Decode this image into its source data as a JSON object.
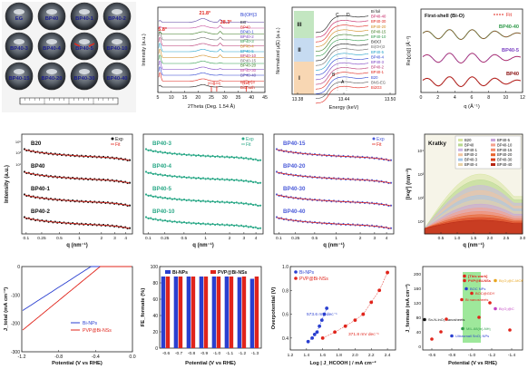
{
  "colors": {
    "red": "#e0241b",
    "blue": "#2a3fd0",
    "green": "#2f9a4a",
    "teal": "#23a98e",
    "purple": "#7a3fc2",
    "black": "#111111",
    "tealDots": "#2aa887",
    "purpleDots": "#4a5ad9",
    "darkred": "#7a1010"
  },
  "dish_panel": {
    "cells": [
      {
        "label": "EG",
        "red": false
      },
      {
        "label": "BP40",
        "red": false
      },
      {
        "label": "BP40-1",
        "red": false
      },
      {
        "label": "BP40-2",
        "red": false
      },
      {
        "label": "BP40-3",
        "red": false
      },
      {
        "label": "BP40-4",
        "red": false
      },
      {
        "label": "BP40-5",
        "red": true
      },
      {
        "label": "BP40-10",
        "red": false
      },
      {
        "label": "BP40-15",
        "red": false
      },
      {
        "label": "BP40-20",
        "red": false
      },
      {
        "label": "BP40-30",
        "red": false
      },
      {
        "label": "BP40-40",
        "red": false
      }
    ]
  },
  "chart_data": [
    {
      "id": "xrd",
      "type": "line",
      "xlabel": "2Theta (Deg. 1.54 Å)",
      "ylabel": "Intensity (a.u.)",
      "xlim": [
        5,
        45
      ],
      "xticks": [
        5,
        10,
        15,
        20,
        25,
        30,
        35,
        40,
        45
      ],
      "peak_labels": [
        "5.8°",
        "21.8°",
        "28.3°"
      ],
      "legend": [
        "EG",
        "BP40",
        "BP40-1",
        "BP40-2",
        "BP40-3",
        "BP40-4",
        "BP40-5",
        "BP40-10",
        "BP40-15",
        "BP40-20",
        "BP40-30",
        "BP40-40"
      ],
      "annotations": [
        "Bi(OH)3",
        "Bi(OH)3",
        "Bismuth",
        "[012]",
        "[104]",
        "[110]"
      ],
      "series_colors": [
        "#111111",
        "#e0241b",
        "#2a3fd0",
        "#7a3fc2",
        "#2f9a4a",
        "#d08a1e",
        "#23a0c8",
        "#b7306e",
        "#6a6a6a",
        "#3a7a20",
        "#c74a9a",
        "#5a3fa0"
      ]
    },
    {
      "id": "xanes",
      "type": "line",
      "xlabel": "Energy (keV)",
      "ylabel": "Normalized μ(E) (a.u.)",
      "xlim": [
        13.38,
        13.5
      ],
      "xticks": [
        "13.38",
        "13.44",
        "13.50"
      ],
      "region_labels": [
        "I",
        "II",
        "III"
      ],
      "peak_labels": [
        "C",
        "D",
        "B",
        "A"
      ],
      "legend": [
        "Bi foil",
        "BP40-40",
        "BP40-30",
        "BP40-20",
        "BP40-15",
        "BP40-10",
        "BiOCl",
        "Bi(OH)3",
        "BP40-5",
        "BP40-4",
        "BP40-3",
        "BP40-2",
        "BP40-1",
        "B20",
        "BNS-EG",
        "Bi2O3"
      ]
    },
    {
      "id": "exafs",
      "type": "line",
      "title": "First-shell (Bi-O)",
      "xlabel": "q (Å⁻¹)",
      "ylabel": "Re[χ(q)] (Å⁻²)",
      "xlim": [
        0,
        12
      ],
      "xticks": [
        0,
        2,
        4,
        6,
        8,
        10,
        12
      ],
      "legend": [
        "Fit"
      ],
      "series": [
        {
          "name": "BP40-40",
          "color": "#2f9a4a"
        },
        {
          "name": "BP40-5",
          "color": "#7a3fc2"
        },
        {
          "name": "BP40",
          "color": "#8a1010"
        }
      ]
    },
    {
      "id": "saxs1",
      "type": "line",
      "xlabel": "q (nm⁻¹)",
      "ylabel": "Intensity (a.u.)",
      "xticks": [
        "0.1",
        "0.25",
        "0.5",
        "1",
        "2",
        "3",
        "4"
      ],
      "yticks": [
        "10⁵",
        "10³",
        "10¹"
      ],
      "legend": [
        "Exp",
        "Fit"
      ],
      "series": [
        {
          "name": "B20"
        },
        {
          "name": "BP40"
        },
        {
          "name": "BP40-1"
        },
        {
          "name": "BP40-2"
        }
      ]
    },
    {
      "id": "saxs2",
      "type": "line",
      "xlabel": "q (nm⁻¹)",
      "xticks": [
        "0.1",
        "0.25",
        "0.5",
        "1",
        "2",
        "3",
        "4"
      ],
      "legend": [
        "Exp",
        "Fit"
      ],
      "series": [
        {
          "name": "BP40-3"
        },
        {
          "name": "BP40-4"
        },
        {
          "name": "BP40-5"
        },
        {
          "name": "BP40-10"
        }
      ]
    },
    {
      "id": "saxs3",
      "type": "line",
      "xlabel": "q (nm⁻¹)",
      "xticks": [
        "0.1",
        "0.25",
        "0.5",
        "1",
        "2",
        "3",
        "4"
      ],
      "legend": [
        "Exp",
        "Fit"
      ],
      "series": [
        {
          "name": "BP40-15"
        },
        {
          "name": "BP40-20"
        },
        {
          "name": "BP40-30"
        },
        {
          "name": "BP40-40"
        }
      ]
    },
    {
      "id": "kratky",
      "type": "area",
      "title": "Kratky",
      "xlabel": "q (nm⁻¹)",
      "ylabel": "[I×q²] (nm⁻²)",
      "xlim": [
        0,
        3
      ],
      "xticks": [
        "0.5",
        "1.0",
        "1.5",
        "2.0",
        "2.5",
        "3.0"
      ],
      "yticks": [
        "10⁴",
        "10³",
        "10²",
        "10¹"
      ],
      "legend": [
        "B20",
        "BP40",
        "BP40-1",
        "BP40-2",
        "BP40-3",
        "BP40-4",
        "BP40-5",
        "BP40-10",
        "BP40-15",
        "BP40-20",
        "BP40-30",
        "BP40-40"
      ]
    },
    {
      "id": "lsv",
      "type": "line",
      "xlabel": "Potential (V vs RHE)",
      "ylabel": "J_total (mA cm⁻²)",
      "xlim": [
        -1.2,
        0
      ],
      "xticks": [
        "-1.2",
        "-0.8",
        "-0.4",
        "0.0"
      ],
      "ylim": [
        -300,
        0
      ],
      "yticks": [
        "0",
        "-100",
        "-200",
        "-300"
      ],
      "series": [
        {
          "name": "Bi-NPs",
          "color": "#2a3fd0"
        },
        {
          "name": "PVP@Bi-NSs",
          "color": "#e0241b"
        }
      ]
    },
    {
      "id": "fe_bar",
      "type": "bar",
      "xlabel": "Potential (V vs RHE)",
      "ylabel": "FE_formate (%)",
      "categories": [
        "-0.6",
        "-0.7",
        "-0.8",
        "-0.9",
        "-1.0",
        "-1.1",
        "-1.2",
        "-1.3"
      ],
      "ylim": [
        0,
        100
      ],
      "yticks": [
        "0",
        "20",
        "40",
        "60",
        "80",
        "100"
      ],
      "series": [
        {
          "name": "Bi-NPs",
          "color": "#2a3fd0",
          "values": [
            88,
            90,
            91,
            90,
            90,
            89,
            87,
            85
          ]
        },
        {
          "name": "PVP@Bi-NSs",
          "color": "#e0241b",
          "values": [
            91,
            92,
            93,
            93,
            94,
            93,
            92,
            90
          ]
        }
      ]
    },
    {
      "id": "tafel",
      "type": "scatter",
      "xlabel": "Log | J_HCOOH | / mA cm⁻²",
      "ylabel": "Overpotential (V)",
      "xlim": [
        1.2,
        2.5
      ],
      "xticks": [
        "1.2",
        "1.4",
        "1.6",
        "1.8",
        "2.0",
        "2.2",
        "2.4"
      ],
      "ylim": [
        0.3,
        1.0
      ],
      "yticks": [
        "0.4",
        "0.6",
        "0.8",
        "1.0"
      ],
      "annotations": [
        "573.6 mV dec⁻¹",
        "371.8 mV dec⁻¹"
      ],
      "series": [
        {
          "name": "Bi-NPs",
          "color": "#2a3fd0",
          "x": [
            1.42,
            1.47,
            1.5,
            1.53,
            1.56,
            1.59,
            1.62,
            1.65
          ],
          "y": [
            0.37,
            0.4,
            0.43,
            0.45,
            0.5,
            0.55,
            0.6,
            0.65
          ]
        },
        {
          "name": "PVP@Bi-NSs",
          "color": "#e0241b",
          "x": [
            1.6,
            1.75,
            1.88,
            2.0,
            2.1,
            2.2,
            2.3,
            2.4
          ],
          "y": [
            0.4,
            0.45,
            0.5,
            0.55,
            0.6,
            0.7,
            0.8,
            0.95
          ]
        }
      ]
    },
    {
      "id": "benchmark",
      "type": "scatter",
      "xlabel": "Potential (V vs RHE)",
      "ylabel": "J_formate (mA cm⁻²)",
      "xlim": [
        -1.4,
        -0.5
      ],
      "xticks": [
        "-0.6",
        "-0.8",
        "-1.0",
        "-1.2",
        "-1.4"
      ],
      "yticks": [
        "0",
        "40",
        "80",
        "120",
        "160",
        "200"
      ],
      "annotations": [
        "[This work]",
        "PVP@Bi-NSs",
        "BOC NPs",
        "BOC@GDY",
        "Bi nanosheets",
        "Bi₂O₃@C-MOF",
        "Bi₂O₂@C",
        "Sn-N-InO₃ nanosheets",
        "MIL-68(In)-NH₂",
        "Ultrasmall SnO₂ NPs"
      ]
    }
  ]
}
